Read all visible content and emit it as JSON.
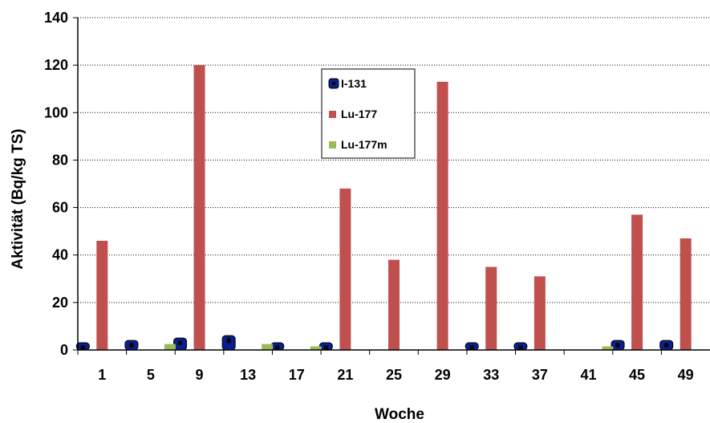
{
  "chart_data": {
    "type": "bar",
    "title": "",
    "xlabel": "Woche",
    "ylabel": "Aktivität (Bq/kg TS)",
    "ylim": [
      0,
      140
    ],
    "yticks": [
      0,
      20,
      40,
      60,
      80,
      100,
      120,
      140
    ],
    "grid": "horizontal dotted",
    "legend_position": "top-center",
    "categories": [
      "1",
      "5",
      "9",
      "13",
      "17",
      "21",
      "25",
      "29",
      "33",
      "37",
      "41",
      "45",
      "49"
    ],
    "series": [
      {
        "name": "I-131",
        "color": "#0a1f8f",
        "values": [
          1,
          2,
          3,
          4,
          1,
          1,
          0,
          0,
          1,
          1,
          0,
          2,
          2
        ],
        "error": [
          0.5,
          1,
          1,
          1.5,
          0.5,
          0.5,
          0,
          0,
          0.5,
          0.5,
          0,
          1,
          1
        ]
      },
      {
        "name": "Lu-177",
        "color": "#c0504d",
        "values": [
          46,
          0,
          120,
          0,
          0,
          68,
          38,
          113,
          35,
          31,
          0,
          57,
          47
        ]
      },
      {
        "name": "Lu-177m",
        "color": "#9bbb59",
        "values": [
          0,
          2.5,
          0,
          2.5,
          1.5,
          0,
          0,
          0,
          0,
          0,
          1.5,
          0,
          0
        ]
      }
    ]
  }
}
